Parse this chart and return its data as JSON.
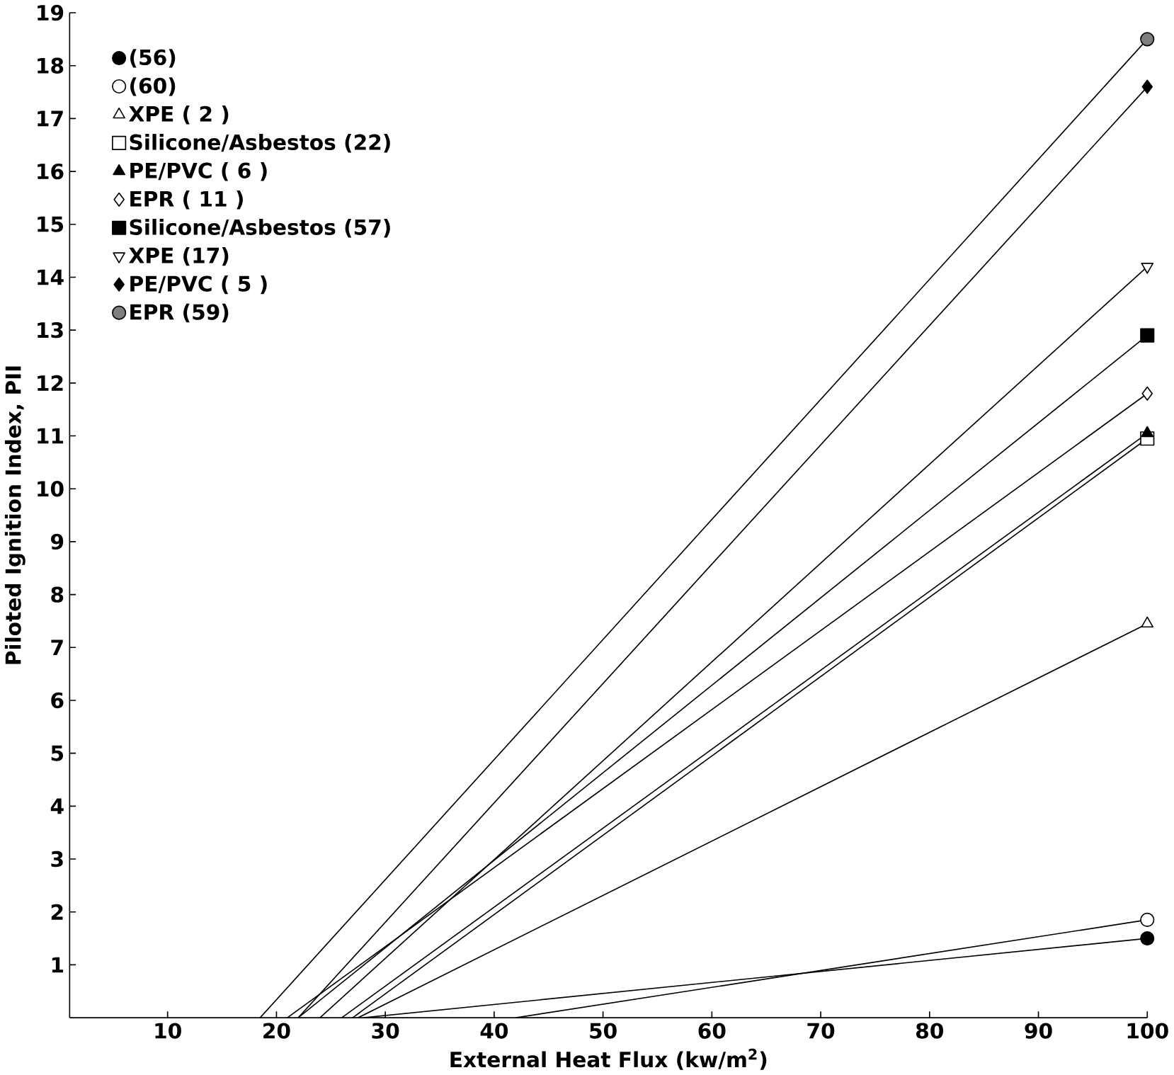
{
  "chart_data": {
    "type": "line",
    "xlabel": "External Heat Flux (kw/m$^{2}$)",
    "ylabel": "Piloted Ignition Index, PII",
    "xlim": [
      1,
      100
    ],
    "ylim": [
      0,
      19
    ],
    "xticks": [
      10,
      20,
      30,
      40,
      50,
      60,
      70,
      80,
      90,
      100
    ],
    "yticks": [
      1,
      2,
      3,
      4,
      5,
      6,
      7,
      8,
      9,
      10,
      11,
      12,
      13,
      14,
      15,
      16,
      17,
      18,
      19
    ],
    "legend": "top left",
    "grid": false,
    "series": [
      {
        "name": "(56)",
        "marker": "circle",
        "color": "#000000",
        "x": [
          28,
          100
        ],
        "values": [
          0,
          1.5
        ]
      },
      {
        "name": "(60)",
        "marker": "circle_open",
        "color": "#000000",
        "x": [
          42,
          100
        ],
        "values": [
          0,
          1.85
        ]
      },
      {
        "name": "XPE ( 2 )",
        "marker": "triangle_open",
        "color": "#000000",
        "x": [
          27.5,
          100
        ],
        "values": [
          0,
          7.45
        ]
      },
      {
        "name": "Silicone/Asbestos (22)",
        "marker": "square_open",
        "color": "#000000",
        "x": [
          27,
          100
        ],
        "values": [
          0,
          10.95
        ]
      },
      {
        "name": "PE/PVC ( 6 )",
        "marker": "triangle",
        "color": "#000000",
        "x": [
          26,
          100
        ],
        "values": [
          0,
          11.05
        ]
      },
      {
        "name": "EPR ( 11 )",
        "marker": "diamond_open",
        "color": "#000000",
        "x": [
          21,
          100
        ],
        "values": [
          0,
          11.8
        ]
      },
      {
        "name": "Silicone/Asbestos (57)",
        "marker": "square",
        "color": "#000000",
        "x": [
          22,
          100
        ],
        "values": [
          0,
          12.9
        ]
      },
      {
        "name": "XPE (17)",
        "marker": "triangle_down_open",
        "color": "#000000",
        "x": [
          24,
          100
        ],
        "values": [
          0,
          14.2
        ]
      },
      {
        "name": "PE/PVC ( 5 )",
        "marker": "diamond",
        "color": "#000000",
        "x": [
          22,
          100
        ],
        "values": [
          0,
          17.6
        ]
      },
      {
        "name": "EPR (59)",
        "marker": "circle_half",
        "color": "#000000",
        "x": [
          18.5,
          100
        ],
        "values": [
          0,
          18.5
        ]
      }
    ]
  }
}
